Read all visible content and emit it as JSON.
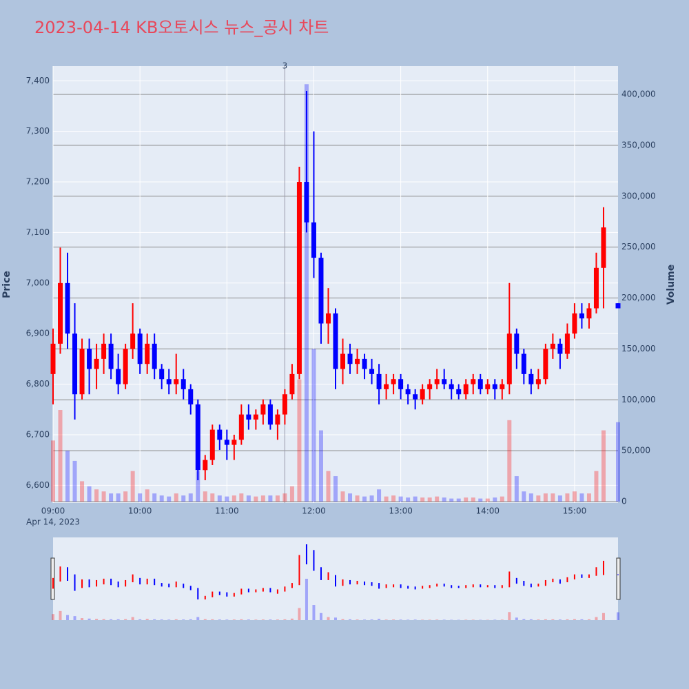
{
  "chart_data": {
    "type": "candlestick",
    "title": "2023-04-14 KB오토시스 뉴스_공시 차트",
    "y_label": "Price",
    "y2_label": "Volume",
    "date_label": "Apr 14, 2023",
    "up_color": "#ff0000",
    "down_color": "#0000ff",
    "annotation": {
      "x": "11:40",
      "text": "3"
    },
    "x": [
      "09:00",
      "09:05",
      "09:10",
      "09:15",
      "09:20",
      "09:25",
      "09:30",
      "09:35",
      "09:40",
      "09:45",
      "09:50",
      "09:55",
      "10:00",
      "10:05",
      "10:10",
      "10:15",
      "10:20",
      "10:25",
      "10:30",
      "10:35",
      "10:40",
      "10:45",
      "10:50",
      "10:55",
      "11:00",
      "11:05",
      "11:10",
      "11:15",
      "11:20",
      "11:25",
      "11:30",
      "11:35",
      "11:40",
      "11:45",
      "11:50",
      "11:55",
      "12:00",
      "12:05",
      "12:10",
      "12:15",
      "12:20",
      "12:25",
      "12:30",
      "12:35",
      "12:40",
      "12:45",
      "12:50",
      "12:55",
      "13:00",
      "13:05",
      "13:10",
      "13:15",
      "13:20",
      "13:25",
      "13:30",
      "13:35",
      "13:40",
      "13:45",
      "13:50",
      "13:55",
      "14:00",
      "14:05",
      "14:10",
      "14:15",
      "14:20",
      "14:25",
      "14:30",
      "14:35",
      "14:40",
      "14:45",
      "14:50",
      "14:55",
      "15:00",
      "15:05",
      "15:10",
      "15:15",
      "15:20",
      "15:30"
    ],
    "open": [
      6820,
      6880,
      7000,
      6900,
      6780,
      6870,
      6830,
      6850,
      6880,
      6830,
      6800,
      6870,
      6900,
      6840,
      6880,
      6830,
      6810,
      6800,
      6810,
      6790,
      6760,
      6630,
      6650,
      6710,
      6690,
      6680,
      6690,
      6740,
      6730,
      6740,
      6760,
      6720,
      6740,
      6780,
      6820,
      7200,
      7120,
      7050,
      6920,
      6940,
      6830,
      6860,
      6840,
      6850,
      6830,
      6820,
      6790,
      6800,
      6810,
      6790,
      6780,
      6770,
      6790,
      6800,
      6810,
      6800,
      6790,
      6780,
      6800,
      6810,
      6790,
      6800,
      6790,
      6800,
      6900,
      6860,
      6820,
      6800,
      6810,
      6870,
      6880,
      6860,
      6900,
      6940,
      6930,
      6950,
      7030,
      6960
    ],
    "high": [
      6910,
      7070,
      7060,
      6960,
      6890,
      6890,
      6880,
      6900,
      6900,
      6860,
      6880,
      6960,
      6910,
      6900,
      6900,
      6840,
      6830,
      6860,
      6830,
      6800,
      6770,
      6660,
      6720,
      6720,
      6710,
      6700,
      6760,
      6760,
      6750,
      6770,
      6770,
      6750,
      6790,
      6840,
      7230,
      7380,
      7300,
      7060,
      6990,
      6950,
      6890,
      6880,
      6870,
      6860,
      6850,
      6840,
      6820,
      6820,
      6820,
      6800,
      6790,
      6800,
      6810,
      6830,
      6830,
      6810,
      6800,
      6810,
      6820,
      6820,
      6810,
      6810,
      6810,
      7000,
      6910,
      6870,
      6830,
      6830,
      6880,
      6900,
      6890,
      6920,
      6960,
      6960,
      6960,
      7060,
      7150,
      6960
    ],
    "low": [
      6760,
      6860,
      6870,
      6730,
      6770,
      6780,
      6790,
      6820,
      6810,
      6780,
      6790,
      6850,
      6820,
      6820,
      6810,
      6790,
      6780,
      6780,
      6770,
      6740,
      6610,
      6610,
      6640,
      6670,
      6650,
      6650,
      6680,
      6710,
      6710,
      6720,
      6710,
      6690,
      6720,
      6770,
      6810,
      7100,
      7010,
      6880,
      6880,
      6790,
      6800,
      6820,
      6820,
      6810,
      6800,
      6760,
      6770,
      6780,
      6770,
      6760,
      6750,
      6760,
      6770,
      6790,
      6790,
      6770,
      6770,
      6770,
      6780,
      6780,
      6780,
      6770,
      6770,
      6780,
      6830,
      6800,
      6780,
      6790,
      6800,
      6850,
      6830,
      6850,
      6890,
      6910,
      6910,
      6940,
      6950,
      6950
    ],
    "close": [
      6880,
      7000,
      6900,
      6780,
      6870,
      6830,
      6850,
      6880,
      6830,
      6800,
      6870,
      6900,
      6840,
      6880,
      6830,
      6810,
      6800,
      6810,
      6790,
      6760,
      6630,
      6650,
      6710,
      6690,
      6680,
      6690,
      6740,
      6730,
      6740,
      6760,
      6720,
      6740,
      6780,
      6820,
      7200,
      7120,
      7050,
      6920,
      6940,
      6830,
      6860,
      6840,
      6850,
      6830,
      6820,
      6790,
      6800,
      6810,
      6790,
      6780,
      6770,
      6790,
      6800,
      6810,
      6800,
      6790,
      6780,
      6800,
      6810,
      6790,
      6800,
      6790,
      6800,
      6900,
      6860,
      6820,
      6800,
      6810,
      6870,
      6880,
      6860,
      6900,
      6940,
      6930,
      6950,
      7030,
      7110,
      6950
    ],
    "volume": [
      60000,
      90000,
      50000,
      40000,
      20000,
      15000,
      12000,
      10000,
      8000,
      8000,
      10000,
      30000,
      8000,
      12000,
      8000,
      6000,
      5000,
      8000,
      6000,
      8000,
      30000,
      10000,
      8000,
      6000,
      5000,
      6000,
      8000,
      6000,
      5000,
      6000,
      6000,
      6000,
      8000,
      15000,
      120000,
      410000,
      150000,
      70000,
      30000,
      25000,
      10000,
      8000,
      6000,
      5000,
      6000,
      12000,
      5000,
      6000,
      5000,
      4000,
      5000,
      4000,
      4000,
      5000,
      4000,
      3000,
      3000,
      4000,
      4000,
      3000,
      3000,
      4000,
      5000,
      80000,
      25000,
      10000,
      8000,
      6000,
      8000,
      8000,
      6000,
      8000,
      10000,
      8000,
      8000,
      30000,
      70000,
      78000
    ],
    "xlim": [
      "09:00",
      "15:30"
    ],
    "xticks": [
      "09:00",
      "10:00",
      "11:00",
      "12:00",
      "13:00",
      "14:00",
      "15:00"
    ],
    "ylim": [
      6565,
      7429
    ],
    "yticks": [
      {
        "value": 6600,
        "label": "6,600"
      },
      {
        "value": 6700,
        "label": "6,700"
      },
      {
        "value": 6800,
        "label": "6,800"
      },
      {
        "value": 6900,
        "label": "6,900"
      },
      {
        "value": 7000,
        "label": "7,000"
      },
      {
        "value": 7100,
        "label": "7,100"
      },
      {
        "value": 7200,
        "label": "7,200"
      },
      {
        "value": 7300,
        "label": "7,300"
      },
      {
        "value": 7400,
        "label": "7,400"
      }
    ],
    "y2lim": [
      -1350,
      427750
    ],
    "y2ticks": [
      0,
      {
        "value": 50000,
        "label": "50,000"
      },
      {
        "value": 100000,
        "label": "100,000"
      },
      {
        "value": 150000,
        "label": "150,000"
      },
      {
        "value": 200000,
        "label": "200,000"
      },
      {
        "value": 250000,
        "label": "250,000"
      },
      {
        "value": 300000,
        "label": "300,000"
      },
      {
        "value": 350000,
        "label": "350,000"
      },
      {
        "value": 400000,
        "label": "400,000"
      }
    ]
  }
}
